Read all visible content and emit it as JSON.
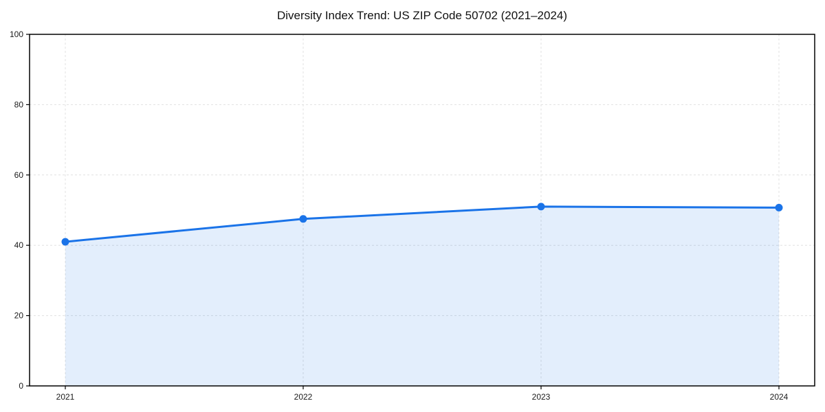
{
  "page": {
    "background": "#ffffff"
  },
  "chart_data": {
    "type": "line",
    "title": "Diversity Index Trend: US ZIP Code 50702 (2021–2024)",
    "x": [
      "2021",
      "2022",
      "2023",
      "2024"
    ],
    "series": [
      {
        "name": "Diversity Index",
        "values": [
          41,
          47.5,
          51,
          50.7
        ]
      }
    ],
    "xlabel": "",
    "ylabel": "",
    "ylim": [
      0,
      100
    ],
    "yticks": [
      0,
      20,
      40,
      60,
      80,
      100
    ],
    "grid": "dashed-both-axes",
    "legend_position": "none",
    "area_fill": true,
    "colors": {
      "line": "#1a73e8",
      "marker": "#1a73e8",
      "area_fill": "rgba(26,115,232,0.12)",
      "grid": "#e0e0e0",
      "spine": "#000000",
      "text": "#111111"
    }
  }
}
